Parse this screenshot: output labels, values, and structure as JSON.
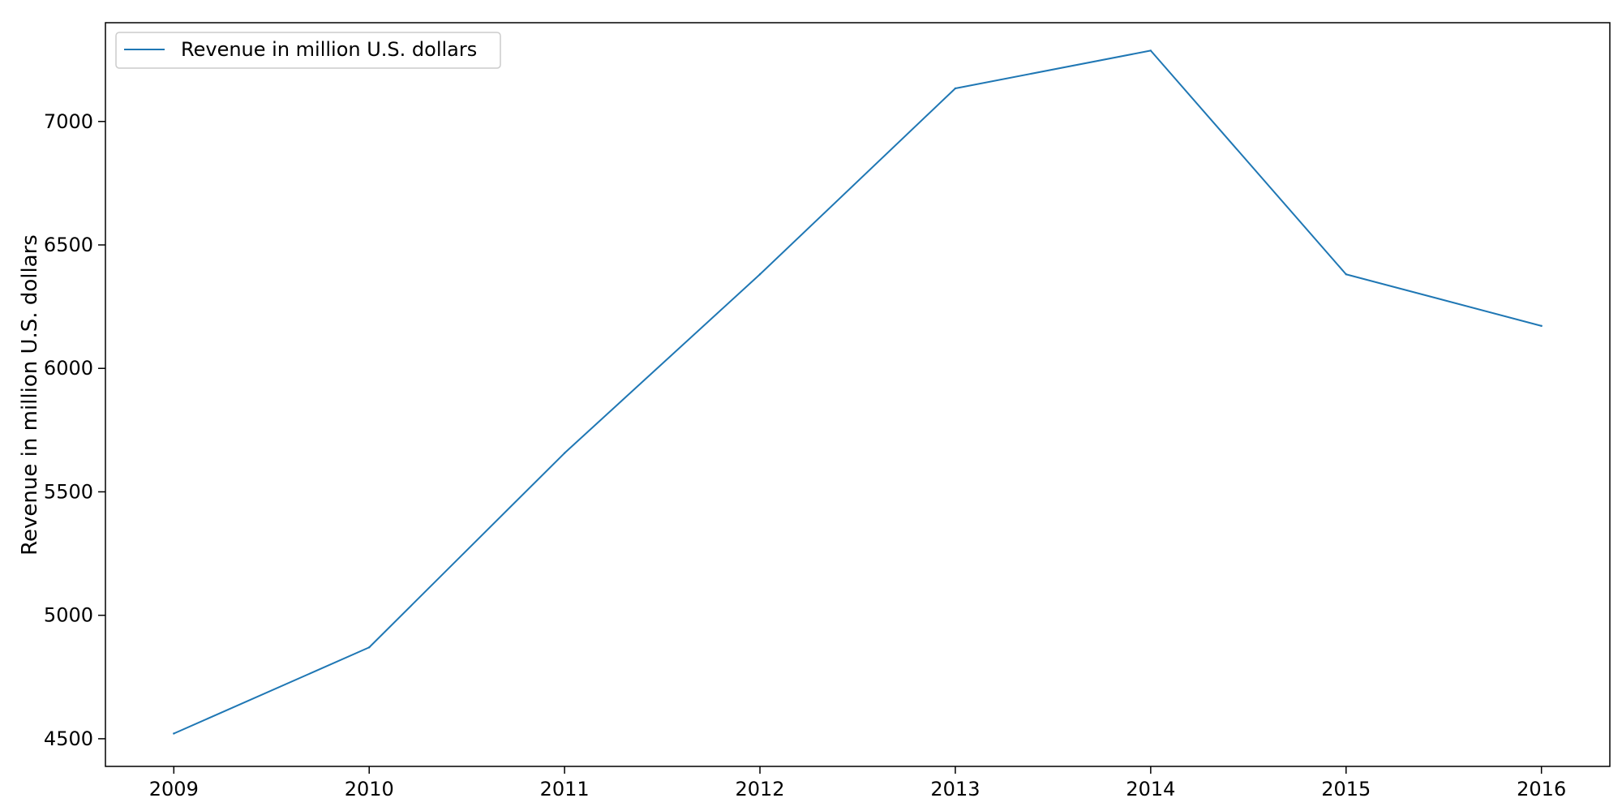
{
  "chart_data": {
    "type": "line",
    "title": "",
    "xlabel": "",
    "ylabel": "Revenue in million U.S. dollars",
    "x": [
      2009,
      2010,
      2011,
      2012,
      2013,
      2014,
      2015,
      2016
    ],
    "series": [
      {
        "name": "Revenue in million U.S. dollars",
        "color": "#1f77b4",
        "values": [
          4521,
          4870,
          5657,
          6381,
          7134,
          7287,
          6381,
          6172
        ]
      }
    ],
    "xlim": [
      2008.65,
      2016.35
    ],
    "ylim": [
      4388,
      7400
    ],
    "yticks": [
      4500,
      5000,
      5500,
      6000,
      6500,
      7000
    ],
    "xticks": [
      "2009",
      "2010",
      "2011",
      "2012",
      "2013",
      "2014",
      "2015",
      "2016"
    ],
    "grid": false,
    "legend_position": "top-left"
  }
}
